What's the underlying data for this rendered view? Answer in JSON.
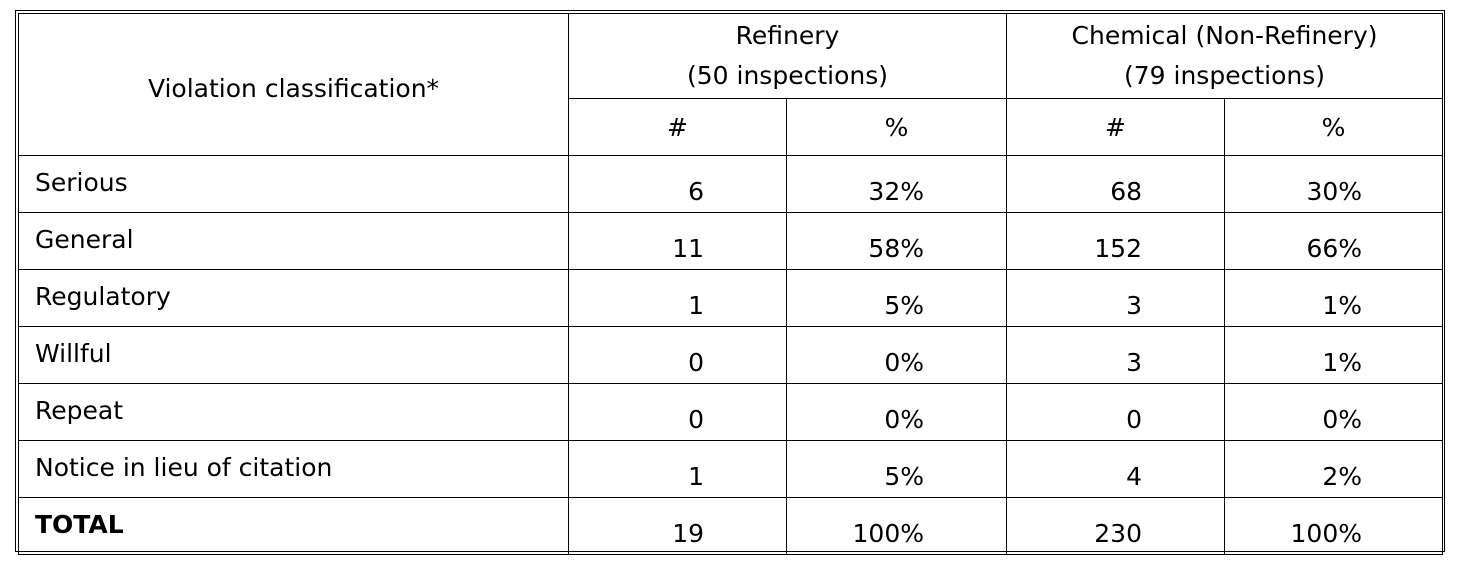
{
  "table": {
    "header": {
      "classification": "Violation classification*",
      "groups": [
        {
          "line1": "Refinery",
          "line2": "(50 inspections)"
        },
        {
          "line1": "Chemical (Non-Refinery)",
          "line2": "(79 inspections)"
        }
      ],
      "count_label": "#",
      "percent_label": "%"
    },
    "rows": [
      {
        "label": "Serious",
        "ref_n": "6",
        "ref_p": "32%",
        "chem_n": "68",
        "chem_p": "30%"
      },
      {
        "label": "General",
        "ref_n": "11",
        "ref_p": "58%",
        "chem_n": "152",
        "chem_p": "66%"
      },
      {
        "label": "Regulatory",
        "ref_n": "1",
        "ref_p": "5%",
        "chem_n": "3",
        "chem_p": "1%"
      },
      {
        "label": "Willful",
        "ref_n": "0",
        "ref_p": "0%",
        "chem_n": "3",
        "chem_p": "1%"
      },
      {
        "label": "Repeat",
        "ref_n": "0",
        "ref_p": "0%",
        "chem_n": "0",
        "chem_p": "0%"
      },
      {
        "label": "Notice in lieu of citation",
        "ref_n": "1",
        "ref_p": "5%",
        "chem_n": "4",
        "chem_p": "2%"
      }
    ],
    "total": {
      "label": "TOTAL",
      "ref_n": "19",
      "ref_p": "100%",
      "chem_n": "230",
      "chem_p": "100%"
    }
  }
}
